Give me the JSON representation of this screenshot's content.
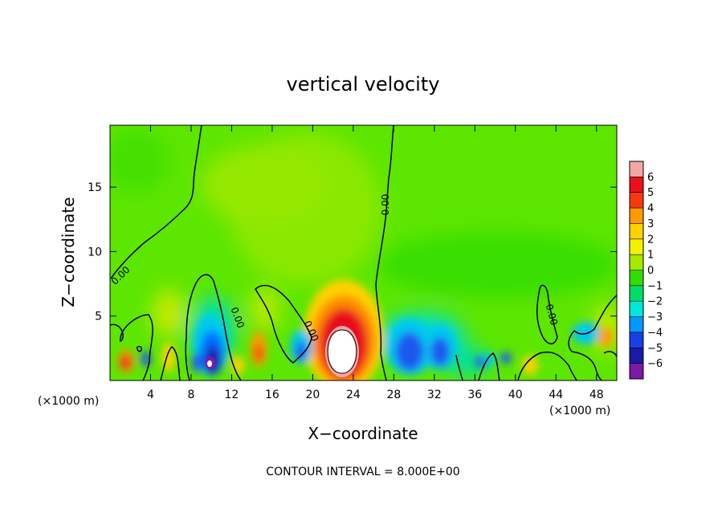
{
  "chart_data": {
    "type": "heatmap",
    "title": "vertical velocity",
    "xlabel": "X−coordinate",
    "ylabel": "Z−coordinate",
    "x_unit": "(×1000 m)",
    "y_unit": "(×1000 m)",
    "xlim": [
      0,
      50
    ],
    "ylim": [
      0,
      19.8
    ],
    "x_ticks": [
      4,
      8,
      12,
      16,
      20,
      24,
      28,
      32,
      36,
      40,
      44,
      48
    ],
    "x_tick_labels": [
      "4",
      "8",
      "12",
      "16",
      "20",
      "24",
      "28",
      "32",
      "36",
      "40",
      "44",
      "48"
    ],
    "y_ticks": [
      5,
      10,
      15
    ],
    "y_tick_labels": [
      "5",
      "10",
      "15"
    ],
    "footer": "CONTOUR INTERVAL = 8.000E+00",
    "contour_level": 0,
    "contour_label": "0.00",
    "colorbar": {
      "levels": [
        6,
        5,
        4,
        3,
        2,
        1,
        0,
        -1,
        -2,
        -3,
        -4,
        -5,
        -6
      ],
      "labels": [
        "6",
        "5",
        "4",
        "3",
        "2",
        "1",
        "0",
        "−1",
        "−2",
        "−3",
        "−4",
        "−5",
        "−6"
      ],
      "colors": [
        "#f4a6a6",
        "#e8111a",
        "#f53a10",
        "#ff9a00",
        "#ffd200",
        "#f2f200",
        "#a6e800",
        "#33dd00",
        "#00dd66",
        "#00e8d8",
        "#0099ff",
        "#1a3fe6",
        "#1a1aa6",
        "#7a1aa6"
      ],
      "min": -6,
      "max": 6
    },
    "features": [
      {
        "kind": "updraft",
        "x": 22.7,
        "z": 2.4,
        "value": 8.0
      },
      {
        "kind": "downdraft",
        "x": 10.0,
        "z": 1.2,
        "value": -5.5
      },
      {
        "kind": "downdraft",
        "x": 29.5,
        "z": 2.0,
        "value": -4.2
      },
      {
        "kind": "downdraft",
        "x": 32.5,
        "z": 2.3,
        "value": -3.8
      }
    ]
  }
}
